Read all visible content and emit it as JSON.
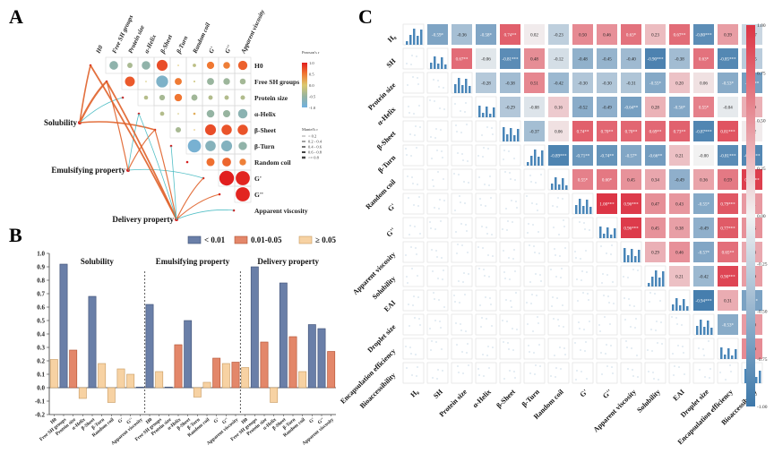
{
  "panels": {
    "a": "A",
    "b": "B",
    "c": "C"
  },
  "chart_data": [
    {
      "id": "A",
      "type": "heatmap",
      "subtype": "mantel-correlogram",
      "variables": [
        "H0",
        "Free SH groups",
        "Protein size",
        "α-Helix",
        "β-Sheet",
        "β-Turn",
        "Random coil",
        "G'",
        "G''",
        "Apparent viscosity"
      ],
      "column_labels": [
        "H0",
        "Free SH groups",
        "Protein size",
        "α-Helix",
        "β-Sheet",
        "β-Turn",
        "Random coil",
        "G'",
        "G''",
        "Apparent viscosity"
      ],
      "pearson_upper": [
        [
          null,
          -0.59,
          -0.36,
          -0.58,
          0.74,
          0.02,
          -0.23,
          0.5,
          0.46,
          0.63
        ],
        [
          null,
          null,
          0.67,
          -0.06,
          -0.81,
          0.48,
          -0.12,
          -0.48,
          -0.45,
          -0.4
        ],
        [
          null,
          null,
          null,
          -0.28,
          -0.38,
          0.51,
          -0.42,
          -0.3,
          -0.3,
          -0.31
        ],
        [
          null,
          null,
          null,
          null,
          -0.29,
          -0.08,
          0.16,
          -0.52,
          -0.49,
          -0.64
        ],
        [
          null,
          null,
          null,
          null,
          null,
          -0.37,
          0.06,
          0.74,
          0.7,
          0.7
        ],
        [
          null,
          null,
          null,
          null,
          null,
          null,
          -0.89,
          -0.71,
          -0.74,
          -0.57
        ],
        [
          null,
          null,
          null,
          null,
          null,
          null,
          null,
          0.55,
          0.6,
          0.45
        ],
        [
          null,
          null,
          null,
          null,
          null,
          null,
          null,
          null,
          1.0,
          0.96
        ],
        [
          null,
          null,
          null,
          null,
          null,
          null,
          null,
          null,
          null,
          0.96
        ],
        [
          null,
          null,
          null,
          null,
          null,
          null,
          null,
          null,
          null,
          null
        ]
      ],
      "mantel_groups": [
        "Solubility",
        "Emulsifying property",
        "Delivery property"
      ],
      "pearson_legend": {
        "title": "Pearson's r",
        "ticks": [
          "1.0",
          "0.5",
          "0.0",
          "-0.5",
          "-1.0"
        ]
      },
      "mantel_legend": {
        "title": "Mantel's r",
        "items": [
          "< 0.2",
          "0.2 - 0.4",
          "0.4 - 0.6",
          "0.6 - 0.8",
          ">= 0.8"
        ]
      }
    },
    {
      "id": "B",
      "type": "bar",
      "categories": [
        "H0",
        "Free SH groups",
        "Protein size",
        "α-Helix",
        "β-Sheet",
        "β-Turn",
        "Random coil",
        "G'",
        "G''",
        "Apparent viscosity"
      ],
      "groups": [
        {
          "name": "Solubility",
          "values": [
            0.21,
            0.92,
            0.28,
            -0.08,
            0.68,
            0.18,
            -0.11,
            0.14,
            0.1,
            0.005
          ],
          "p": [
            "ge005",
            "lt001",
            "mid",
            "ge005",
            "lt001",
            "ge005",
            "ge005",
            "ge005",
            "ge005",
            "lt001"
          ]
        },
        {
          "name": "Emulsifying property",
          "values": [
            0.62,
            0.12,
            0.005,
            0.32,
            0.5,
            -0.07,
            0.04,
            0.22,
            0.18,
            0.19
          ],
          "p": [
            "lt001",
            "ge005",
            "lt001",
            "mid",
            "lt001",
            "ge005",
            "ge005",
            "mid",
            "ge005",
            "mid"
          ]
        },
        {
          "name": "Delivery property",
          "values": [
            0.15,
            0.9,
            0.34,
            -0.11,
            0.78,
            0.38,
            0.12,
            0.47,
            0.44,
            0.27
          ],
          "p": [
            "ge005",
            "lt001",
            "mid",
            "ge005",
            "lt001",
            "mid",
            "ge005",
            "lt001",
            "lt001",
            "mid"
          ]
        }
      ],
      "legend": [
        {
          "key": "lt001",
          "label": "< 0.01",
          "color": "#6a7fa8"
        },
        {
          "key": "mid",
          "label": "0.01-0.05",
          "color": "#e3876a"
        },
        {
          "key": "ge005",
          "label": "≥ 0.05",
          "color": "#f7d2a3"
        }
      ],
      "ylim": [
        -0.2,
        1.0
      ],
      "yticks": [
        "1.0",
        "0.9",
        "0.8",
        "0.7",
        "0.6",
        "0.5",
        "0.4",
        "0.3",
        "0.2",
        "0.1",
        "0.0",
        "-0.1",
        "-0.2"
      ],
      "xlabel": "",
      "ylabel": "",
      "grid": false,
      "legend_position": "top-right"
    },
    {
      "id": "C",
      "type": "heatmap",
      "subtype": "correlation-pairplot",
      "variables": [
        "H₀",
        "SH",
        "Protein size",
        "α-Helix",
        "β-Sheet",
        "β-Turn",
        "Random coil",
        "G'",
        "G''",
        "Apparent viscosity",
        "Solubility",
        "EAI",
        "Droplet size",
        "Encapsulation efficiency",
        "Bioaccessibility"
      ],
      "row_labels": [
        "H₀",
        "SH",
        "Protein size",
        "α-Helix",
        "β-Sheet",
        "β-Turn",
        "Random coil",
        "G'",
        "G''",
        "Apparent viscosity",
        "Solubility",
        "EAI",
        "Droplet size",
        "Encapsulation efficiency",
        "Bioaccessibility"
      ],
      "upper_values": [
        [
          "-0.59*",
          "-0.36",
          "-0.58*",
          "0.74**",
          "0.02",
          "-0.23",
          "0.50",
          "0.46",
          "0.63*",
          "0.23",
          "0.67**",
          "-0.80***",
          "0.39",
          "-0.17"
        ],
        [
          "0.67**",
          "-0.06",
          "-0.81***",
          "0.48",
          "-0.12",
          "-0.48",
          "-0.45",
          "-0.40",
          "-0.90***",
          "-0.38",
          "0.63*",
          "-0.85***",
          "-0.25"
        ],
        [
          "-0.28",
          "-0.38",
          "0.51",
          "-0.42",
          "-0.30",
          "-0.30",
          "-0.31",
          "-0.55*",
          "0.20",
          "0.06",
          "-0.53*",
          "-0.64**"
        ],
        [
          "-0.29",
          "-0.08",
          "0.16",
          "-0.52",
          "-0.49",
          "-0.64**",
          "0.28",
          "-0.56*",
          "0.55*",
          "-0.04",
          "0.29"
        ],
        [
          "-0.37",
          "0.06",
          "0.74**",
          "0.70**",
          "0.70**",
          "0.69**",
          "0.73**",
          "-0.87***",
          "0.81***",
          "0.02"
        ],
        [
          "-0.89***",
          "-0.71**",
          "-0.74**",
          "-0.57*",
          "-0.66**",
          "0.21",
          "-0.00",
          "-0.81***",
          "-0.86***"
        ],
        [
          "0.55*",
          "0.60*",
          "0.45",
          "0.34",
          "-0.49",
          "0.36",
          "0.59",
          "0.94***"
        ],
        [
          "1.00***",
          "0.96***",
          "0.47",
          "0.43",
          "-0.55*",
          "0.79***",
          "0.41"
        ],
        [
          "0.96***",
          "0.45",
          "0.38",
          "-0.49",
          "0.77***",
          "0.45"
        ],
        [
          "0.29",
          "0.46",
          "-0.57*",
          "0.65**",
          "0.33"
        ],
        [
          "0.21",
          "-0.42",
          "0.90***",
          "0.39"
        ],
        [
          "-0.94***",
          "0.31",
          "-0.61*"
        ],
        [
          "-0.53*",
          "0.40"
        ],
        [
          "0.49"
        ],
        []
      ],
      "colorbar": {
        "ticks": [
          "1.00",
          "0.75",
          "0.50",
          "0.25",
          "0.00",
          "-0.25",
          "-0.50",
          "-0.75",
          "-1.00"
        ],
        "low": "#3d78aa",
        "mid": "#f2f2f2",
        "high": "#dc3545"
      }
    }
  ]
}
